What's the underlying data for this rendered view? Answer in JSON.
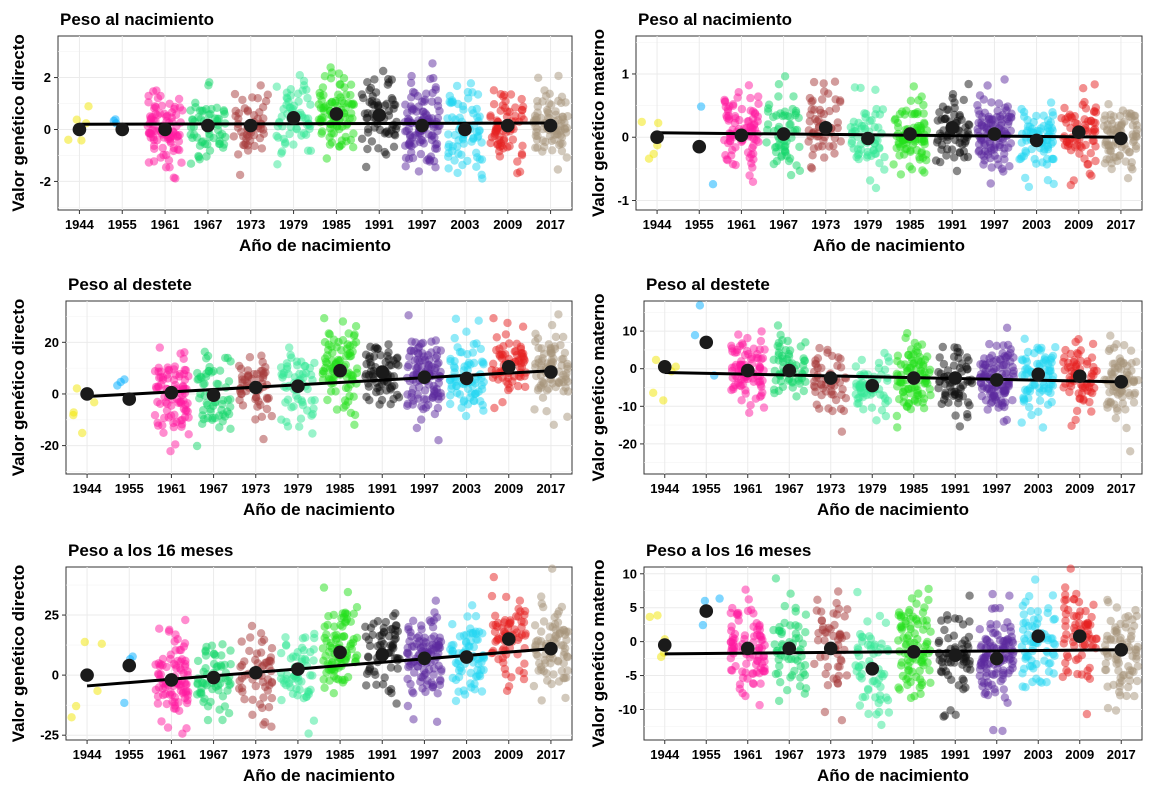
{
  "chart_data": [
    {
      "type": "scatter",
      "title": "Peso al nacimiento",
      "xlabel": "Año de nacimiento",
      "ylabel": "Valor genético directo",
      "ylim": [
        -3.1,
        3.6
      ],
      "yticks": [
        -2,
        0,
        2
      ],
      "ytick_labels": [
        "-2",
        "0",
        "2"
      ],
      "spread": 0.75,
      "n": [
        5,
        3,
        90,
        60,
        55,
        60,
        90,
        65,
        110,
        75,
        70,
        80
      ],
      "means": [
        0.0,
        0.0,
        0.0,
        0.15,
        0.15,
        0.45,
        0.6,
        0.55,
        0.15,
        0.0,
        0.15,
        0.15
      ],
      "trend": [
        0.2,
        0.25
      ]
    },
    {
      "type": "scatter",
      "title": "Peso al nacimiento",
      "xlabel": "Año de nacimiento",
      "ylabel": "Valor genético materno",
      "ylim": [
        -1.15,
        1.6
      ],
      "yticks": [
        -1,
        0,
        1
      ],
      "ytick_labels": [
        "-1",
        "0",
        "1"
      ],
      "spread": 0.3,
      "n": [
        5,
        3,
        90,
        60,
        55,
        60,
        90,
        65,
        110,
        75,
        70,
        80
      ],
      "means": [
        0.0,
        -0.15,
        0.03,
        0.05,
        0.15,
        -0.02,
        0.05,
        0.15,
        0.05,
        -0.05,
        0.08,
        -0.02
      ],
      "trend": [
        0.07,
        0.0
      ]
    },
    {
      "type": "scatter",
      "title": "Peso al destete",
      "xlabel": "Año de nacimiento",
      "ylabel": "Valor genético directo",
      "ylim": [
        -31,
        36
      ],
      "yticks": [
        -20,
        0,
        20
      ],
      "ytick_labels": [
        "-20",
        "0",
        "20"
      ],
      "spread": 8,
      "n": [
        5,
        3,
        90,
        60,
        55,
        60,
        90,
        65,
        110,
        75,
        70,
        80
      ],
      "means": [
        0.0,
        -2.0,
        0.5,
        -0.5,
        2.5,
        3.0,
        9.0,
        8.5,
        6.5,
        6.0,
        10.5,
        8.5
      ],
      "trend": [
        -1.0,
        9.0
      ]
    },
    {
      "type": "scatter",
      "title": "Peso al destete",
      "xlabel": "Año de nacimiento",
      "ylabel": "Valor genético materno",
      "ylim": [
        -28,
        18
      ],
      "yticks": [
        -20,
        -10,
        0,
        10
      ],
      "ytick_labels": [
        "-20",
        "-10",
        "0",
        "10"
      ],
      "spread": 5,
      "n": [
        5,
        3,
        90,
        60,
        55,
        60,
        90,
        65,
        110,
        75,
        70,
        80
      ],
      "means": [
        0.5,
        7.0,
        -0.5,
        -0.5,
        -2.5,
        -4.5,
        -2.5,
        -2.5,
        -3.0,
        -1.5,
        -2.0,
        -3.5
      ],
      "trend": [
        -1.0,
        -3.5
      ]
    },
    {
      "type": "scatter",
      "title": "Peso a los 16 meses",
      "xlabel": "Año de nacimiento",
      "ylabel": "Valor genético directo",
      "ylim": [
        -27,
        45
      ],
      "yticks": [
        -25,
        0,
        25
      ],
      "ytick_labels": [
        "-25",
        "0",
        "25"
      ],
      "spread": 9,
      "n": [
        5,
        3,
        90,
        60,
        55,
        60,
        90,
        65,
        110,
        75,
        70,
        80
      ],
      "means": [
        0.0,
        4.0,
        -2.0,
        -1.0,
        1.0,
        2.5,
        9.5,
        8.5,
        7.0,
        7.5,
        15.0,
        11.0
      ],
      "trend": [
        -4.5,
        11.0
      ]
    },
    {
      "type": "scatter",
      "title": "Peso a los 16 meses",
      "xlabel": "Año de nacimiento",
      "ylabel": "Valor genético materno",
      "ylim": [
        -14.5,
        11
      ],
      "yticks": [
        -10,
        -5,
        0,
        5,
        10
      ],
      "ytick_labels": [
        "-10",
        "-5",
        "0",
        "5",
        "10"
      ],
      "spread": 3.5,
      "n": [
        5,
        3,
        90,
        60,
        55,
        60,
        90,
        65,
        110,
        75,
        70,
        80
      ],
      "means": [
        -0.5,
        4.5,
        -1.0,
        -1.0,
        -1.0,
        -4.0,
        -1.5,
        -2.0,
        -2.5,
        0.8,
        0.8,
        -1.2
      ],
      "trend": [
        -1.8,
        -1.2
      ]
    }
  ],
  "groups": [
    "1944",
    "1955",
    "1961",
    "1967",
    "1973",
    "1979",
    "1985",
    "1991",
    "1997",
    "2003",
    "2009",
    "2017"
  ],
  "group_colors": [
    "#f2e600",
    "#00aeff",
    "#ff1aa0",
    "#14d66a",
    "#a63a3a",
    "#33e895",
    "#22e01a",
    "#111111",
    "#5b2a9e",
    "#22d6f2",
    "#e62020",
    "#a6937a"
  ]
}
